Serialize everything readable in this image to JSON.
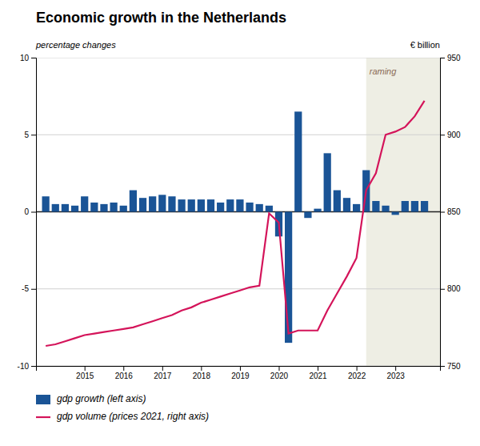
{
  "chart_data": {
    "type": "bar",
    "title": "Economic growth in the Netherlands",
    "ylabel": "percentage changes",
    "y2label": "€ billion",
    "x": [
      2014.0,
      2014.25,
      2014.5,
      2014.75,
      2015.0,
      2015.25,
      2015.5,
      2015.75,
      2016.0,
      2016.25,
      2016.5,
      2016.75,
      2017.0,
      2017.25,
      2017.5,
      2017.75,
      2018.0,
      2018.25,
      2018.5,
      2018.75,
      2019.0,
      2019.25,
      2019.5,
      2019.75,
      2020.0,
      2020.25,
      2020.5,
      2020.75,
      2021.0,
      2021.25,
      2021.5,
      2021.75,
      2022.0,
      2022.25,
      2022.5,
      2022.75,
      2023.0,
      2023.25,
      2023.5,
      2023.75
    ],
    "series": [
      {
        "name": "gdp growth (left axis)",
        "type": "bar",
        "color": "#1a5496",
        "values": [
          1.0,
          0.5,
          0.5,
          0.4,
          1.0,
          0.6,
          0.5,
          0.6,
          0.4,
          1.4,
          0.9,
          1.0,
          1.1,
          1.0,
          0.8,
          0.8,
          0.8,
          0.8,
          0.6,
          0.8,
          0.8,
          0.6,
          0.5,
          0.4,
          -1.6,
          -8.5,
          6.5,
          -0.4,
          0.2,
          3.8,
          1.4,
          0.9,
          0.5,
          2.7,
          0.7,
          0.4,
          -0.2,
          0.7,
          0.7,
          0.7
        ]
      },
      {
        "name": "gdp volume (prices 2021, right axis)",
        "type": "line",
        "axis": "y2",
        "color": "#d4145a",
        "values": [
          763,
          764,
          766,
          768,
          770,
          771,
          772,
          773,
          774,
          775,
          777,
          779,
          781,
          783,
          786,
          788,
          791,
          793,
          795,
          797,
          799,
          801,
          802,
          849,
          843,
          771,
          773,
          773,
          773,
          786,
          797,
          808,
          820,
          864,
          875,
          900,
          902,
          905,
          912,
          922
        ]
      }
    ],
    "xlim": [
      2013.75,
      2024.15
    ],
    "xticks": [
      2015,
      2016,
      2017,
      2018,
      2019,
      2020,
      2021,
      2022,
      2023
    ],
    "ylim": [
      -10,
      10
    ],
    "yticks": [
      -10,
      -5,
      0,
      5,
      10
    ],
    "y2lim": [
      750,
      950
    ],
    "y2ticks": [
      750,
      800,
      850,
      900,
      950
    ],
    "grid": true,
    "legend": "bottom",
    "annotations": [
      {
        "text": "raming",
        "x": 2022.25,
        "y": 9.3,
        "color": "#eeeee4"
      }
    ]
  }
}
